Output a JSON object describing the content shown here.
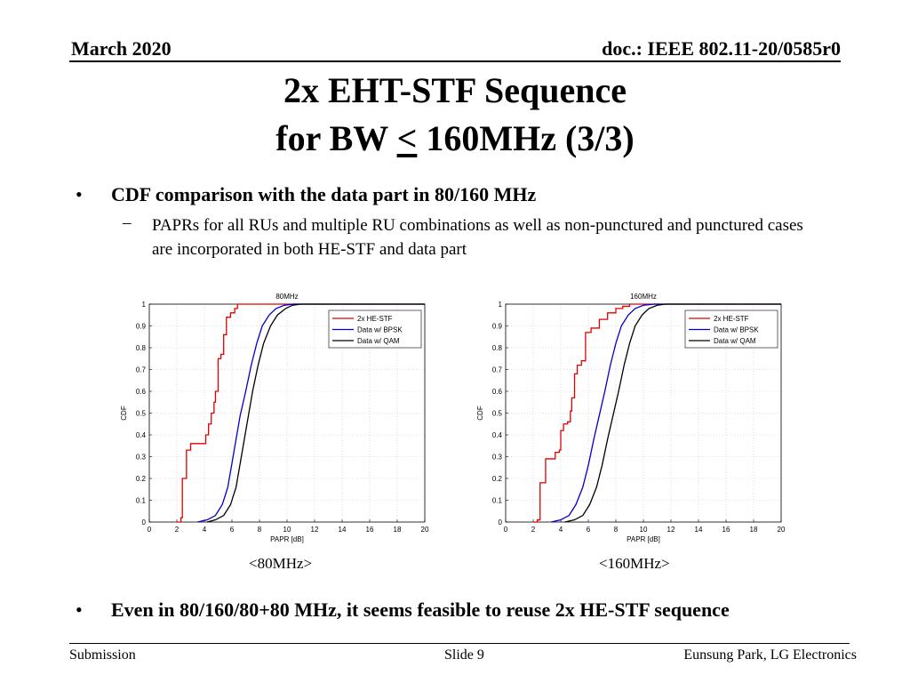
{
  "header": {
    "date": "March 2020",
    "doc": "doc.: IEEE 802.11-20/0585r0"
  },
  "title": {
    "line1": "2x EHT-STF Sequence",
    "line2_prefix": "for BW ",
    "line2_symbol": "<",
    "line2_suffix": " 160MHz (3/3)"
  },
  "bullets": {
    "first": "CDF comparison with the data part in 80/160 MHz",
    "first_sub": "PAPRs for all RUs and multiple RU combinations as well as non-punctured and punctured cases are incorporated in both HE-STF and data part",
    "second": "Even in 80/160/80+80 MHz, it seems feasible to reuse 2x HE-STF sequence",
    "marker": "•",
    "sub_marker": "–"
  },
  "captions": [
    "<80MHz>",
    "<160MHz>"
  ],
  "footer": {
    "left": "Submission",
    "center": "Slide 9",
    "right": "Eunsung Park, LG Electronics"
  },
  "chart_data": [
    {
      "type": "line",
      "title": "80MHz",
      "xlabel": "PAPR [dB]",
      "ylabel": "CDF",
      "xlim": [
        0,
        20
      ],
      "ylim": [
        0,
        1
      ],
      "xticks": [
        0,
        2,
        4,
        6,
        8,
        10,
        12,
        14,
        16,
        18,
        20
      ],
      "yticks": [
        0,
        0.1,
        0.2,
        0.3,
        0.4,
        0.5,
        0.6,
        0.7,
        0.8,
        0.9,
        1
      ],
      "grid": true,
      "legend_position": "top-right",
      "series": [
        {
          "name": "2x HE-STF",
          "color": "#e00000",
          "step": true,
          "x": [
            2.0,
            2.3,
            2.4,
            2.7,
            3.0,
            3.5,
            4.1,
            4.3,
            4.5,
            4.7,
            4.8,
            5.0,
            5.2,
            5.4,
            5.6,
            5.9,
            6.2,
            6.4
          ],
          "y": [
            0.0,
            0.02,
            0.2,
            0.33,
            0.36,
            0.36,
            0.4,
            0.45,
            0.5,
            0.55,
            0.6,
            0.75,
            0.77,
            0.86,
            0.94,
            0.96,
            0.98,
            1.0
          ]
        },
        {
          "name": "Data w/ BPSK",
          "color": "#0000cc",
          "step": false,
          "x": [
            3.5,
            4.2,
            4.8,
            5.3,
            5.7,
            6.0,
            6.3,
            6.6,
            7.0,
            7.4,
            7.8,
            8.2,
            8.7,
            9.2,
            9.8,
            10.5
          ],
          "y": [
            0.0,
            0.01,
            0.03,
            0.08,
            0.16,
            0.27,
            0.38,
            0.49,
            0.6,
            0.72,
            0.82,
            0.9,
            0.95,
            0.98,
            0.995,
            1.0
          ]
        },
        {
          "name": "Data w/ QAM",
          "color": "#000000",
          "step": false,
          "x": [
            4.2,
            4.8,
            5.4,
            5.9,
            6.3,
            6.6,
            6.9,
            7.2,
            7.5,
            7.9,
            8.3,
            8.8,
            9.3,
            9.9,
            10.4,
            11.0
          ],
          "y": [
            0.0,
            0.01,
            0.03,
            0.08,
            0.16,
            0.27,
            0.38,
            0.49,
            0.6,
            0.72,
            0.82,
            0.9,
            0.95,
            0.98,
            0.995,
            1.0
          ]
        }
      ]
    },
    {
      "type": "line",
      "title": "160MHz",
      "xlabel": "PAPR [dB]",
      "ylabel": "CDF",
      "xlim": [
        0,
        20
      ],
      "ylim": [
        0,
        1
      ],
      "xticks": [
        0,
        2,
        4,
        6,
        8,
        10,
        12,
        14,
        16,
        18,
        20
      ],
      "yticks": [
        0,
        0.1,
        0.2,
        0.3,
        0.4,
        0.5,
        0.6,
        0.7,
        0.8,
        0.9,
        1
      ],
      "grid": true,
      "legend_position": "top-right",
      "series": [
        {
          "name": "2x HE-STF",
          "color": "#e00000",
          "step": true,
          "x": [
            2.0,
            2.3,
            2.5,
            2.9,
            3.6,
            3.9,
            4.0,
            4.2,
            4.5,
            4.7,
            4.8,
            5.0,
            5.2,
            5.5,
            5.8,
            6.2,
            6.8,
            7.4,
            8.0,
            8.5,
            9.0
          ],
          "y": [
            0.0,
            0.01,
            0.18,
            0.29,
            0.32,
            0.33,
            0.42,
            0.45,
            0.46,
            0.51,
            0.57,
            0.68,
            0.72,
            0.74,
            0.87,
            0.89,
            0.93,
            0.96,
            0.98,
            0.99,
            1.0
          ]
        },
        {
          "name": "Data w/ BPSK",
          "color": "#0000cc",
          "step": false,
          "x": [
            3.3,
            4.0,
            4.6,
            5.1,
            5.6,
            6.0,
            6.4,
            6.8,
            7.2,
            7.6,
            8.0,
            8.4,
            8.9,
            9.4,
            10.0,
            10.8
          ],
          "y": [
            0.0,
            0.01,
            0.03,
            0.08,
            0.16,
            0.26,
            0.38,
            0.49,
            0.6,
            0.72,
            0.82,
            0.9,
            0.95,
            0.98,
            0.995,
            1.0
          ]
        },
        {
          "name": "Data w/ QAM",
          "color": "#000000",
          "step": false,
          "x": [
            4.3,
            5.0,
            5.6,
            6.1,
            6.6,
            7.0,
            7.4,
            7.8,
            8.2,
            8.6,
            9.0,
            9.4,
            9.9,
            10.4,
            11.0,
            11.6
          ],
          "y": [
            0.0,
            0.01,
            0.03,
            0.08,
            0.16,
            0.26,
            0.38,
            0.49,
            0.6,
            0.72,
            0.82,
            0.9,
            0.95,
            0.98,
            0.995,
            1.0
          ]
        }
      ]
    }
  ]
}
